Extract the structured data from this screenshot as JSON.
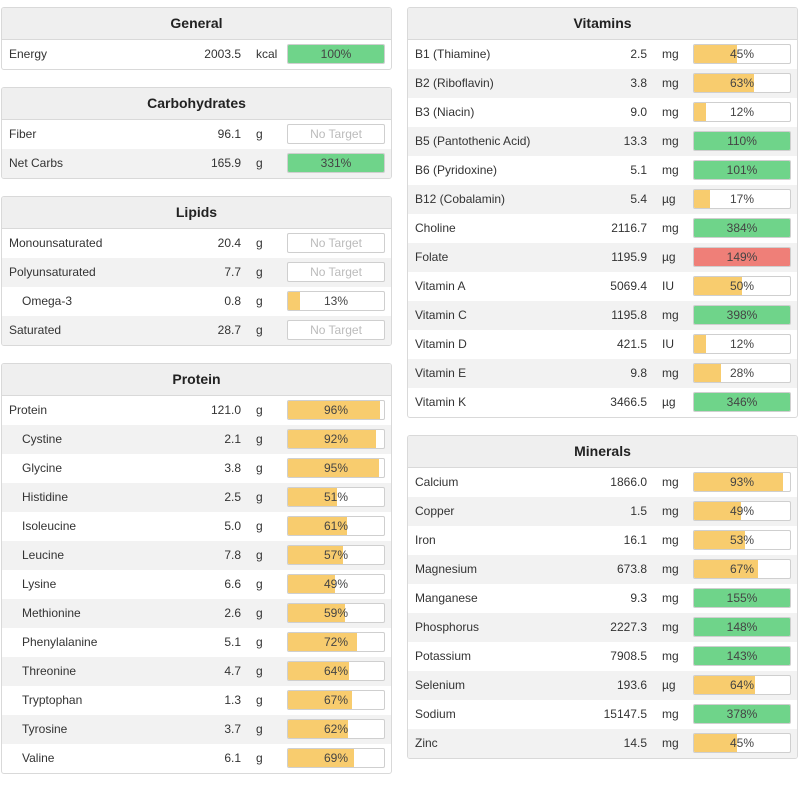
{
  "colors": {
    "green": "#6fd48a",
    "yellow": "#f8cc6e",
    "red": "#ef7f78"
  },
  "left_panels": [
    {
      "title": "General",
      "rows": [
        {
          "name": "Energy",
          "amount": "2003.5",
          "unit": "kcal",
          "pct": 100,
          "label": "100%",
          "status": "green"
        }
      ]
    },
    {
      "title": "Carbohydrates",
      "rows": [
        {
          "name": "Fiber",
          "amount": "96.1",
          "unit": "g",
          "pct": 0,
          "label": "No Target",
          "status": "none"
        },
        {
          "name": "Net Carbs",
          "amount": "165.9",
          "unit": "g",
          "pct": 100,
          "label": "331%",
          "status": "green"
        }
      ]
    },
    {
      "title": "Lipids",
      "rows": [
        {
          "name": "Monounsaturated",
          "amount": "20.4",
          "unit": "g",
          "pct": 0,
          "label": "No Target",
          "status": "none"
        },
        {
          "name": "Polyunsaturated",
          "amount": "7.7",
          "unit": "g",
          "pct": 0,
          "label": "No Target",
          "status": "none"
        },
        {
          "name": "Omega-3",
          "amount": "0.8",
          "unit": "g",
          "pct": 13,
          "label": "13%",
          "status": "yellow",
          "sub": true
        },
        {
          "name": "Saturated",
          "amount": "28.7",
          "unit": "g",
          "pct": 0,
          "label": "No Target",
          "status": "none"
        }
      ]
    },
    {
      "title": "Protein",
      "rows": [
        {
          "name": "Protein",
          "amount": "121.0",
          "unit": "g",
          "pct": 96,
          "label": "96%",
          "status": "yellow"
        },
        {
          "name": "Cystine",
          "amount": "2.1",
          "unit": "g",
          "pct": 92,
          "label": "92%",
          "status": "yellow",
          "sub": true
        },
        {
          "name": "Glycine",
          "amount": "3.8",
          "unit": "g",
          "pct": 95,
          "label": "95%",
          "status": "yellow",
          "sub": true
        },
        {
          "name": "Histidine",
          "amount": "2.5",
          "unit": "g",
          "pct": 51,
          "label": "51%",
          "status": "yellow",
          "sub": true
        },
        {
          "name": "Isoleucine",
          "amount": "5.0",
          "unit": "g",
          "pct": 61,
          "label": "61%",
          "status": "yellow",
          "sub": true
        },
        {
          "name": "Leucine",
          "amount": "7.8",
          "unit": "g",
          "pct": 57,
          "label": "57%",
          "status": "yellow",
          "sub": true
        },
        {
          "name": "Lysine",
          "amount": "6.6",
          "unit": "g",
          "pct": 49,
          "label": "49%",
          "status": "yellow",
          "sub": true
        },
        {
          "name": "Methionine",
          "amount": "2.6",
          "unit": "g",
          "pct": 59,
          "label": "59%",
          "status": "yellow",
          "sub": true
        },
        {
          "name": "Phenylalanine",
          "amount": "5.1",
          "unit": "g",
          "pct": 72,
          "label": "72%",
          "status": "yellow",
          "sub": true
        },
        {
          "name": "Threonine",
          "amount": "4.7",
          "unit": "g",
          "pct": 64,
          "label": "64%",
          "status": "yellow",
          "sub": true
        },
        {
          "name": "Tryptophan",
          "amount": "1.3",
          "unit": "g",
          "pct": 67,
          "label": "67%",
          "status": "yellow",
          "sub": true
        },
        {
          "name": "Tyrosine",
          "amount": "3.7",
          "unit": "g",
          "pct": 62,
          "label": "62%",
          "status": "yellow",
          "sub": true
        },
        {
          "name": "Valine",
          "amount": "6.1",
          "unit": "g",
          "pct": 69,
          "label": "69%",
          "status": "yellow",
          "sub": true
        }
      ]
    }
  ],
  "right_panels": [
    {
      "title": "Vitamins",
      "rows": [
        {
          "name": "B1 (Thiamine)",
          "amount": "2.5",
          "unit": "mg",
          "pct": 45,
          "label": "45%",
          "status": "yellow"
        },
        {
          "name": "B2 (Riboflavin)",
          "amount": "3.8",
          "unit": "mg",
          "pct": 63,
          "label": "63%",
          "status": "yellow"
        },
        {
          "name": "B3 (Niacin)",
          "amount": "9.0",
          "unit": "mg",
          "pct": 12,
          "label": "12%",
          "status": "yellow"
        },
        {
          "name": "B5 (Pantothenic Acid)",
          "amount": "13.3",
          "unit": "mg",
          "pct": 100,
          "label": "110%",
          "status": "green"
        },
        {
          "name": "B6 (Pyridoxine)",
          "amount": "5.1",
          "unit": "mg",
          "pct": 100,
          "label": "101%",
          "status": "green"
        },
        {
          "name": "B12 (Cobalamin)",
          "amount": "5.4",
          "unit": "µg",
          "pct": 17,
          "label": "17%",
          "status": "yellow"
        },
        {
          "name": "Choline",
          "amount": "2116.7",
          "unit": "mg",
          "pct": 100,
          "label": "384%",
          "status": "green"
        },
        {
          "name": "Folate",
          "amount": "1195.9",
          "unit": "µg",
          "pct": 100,
          "label": "149%",
          "status": "red"
        },
        {
          "name": "Vitamin A",
          "amount": "5069.4",
          "unit": "IU",
          "pct": 50,
          "label": "50%",
          "status": "yellow"
        },
        {
          "name": "Vitamin C",
          "amount": "1195.8",
          "unit": "mg",
          "pct": 100,
          "label": "398%",
          "status": "green"
        },
        {
          "name": "Vitamin D",
          "amount": "421.5",
          "unit": "IU",
          "pct": 12,
          "label": "12%",
          "status": "yellow"
        },
        {
          "name": "Vitamin E",
          "amount": "9.8",
          "unit": "mg",
          "pct": 28,
          "label": "28%",
          "status": "yellow"
        },
        {
          "name": "Vitamin K",
          "amount": "3466.5",
          "unit": "µg",
          "pct": 100,
          "label": "346%",
          "status": "green"
        }
      ]
    },
    {
      "title": "Minerals",
      "rows": [
        {
          "name": "Calcium",
          "amount": "1866.0",
          "unit": "mg",
          "pct": 93,
          "label": "93%",
          "status": "yellow"
        },
        {
          "name": "Copper",
          "amount": "1.5",
          "unit": "mg",
          "pct": 49,
          "label": "49%",
          "status": "yellow"
        },
        {
          "name": "Iron",
          "amount": "16.1",
          "unit": "mg",
          "pct": 53,
          "label": "53%",
          "status": "yellow"
        },
        {
          "name": "Magnesium",
          "amount": "673.8",
          "unit": "mg",
          "pct": 67,
          "label": "67%",
          "status": "yellow"
        },
        {
          "name": "Manganese",
          "amount": "9.3",
          "unit": "mg",
          "pct": 100,
          "label": "155%",
          "status": "green"
        },
        {
          "name": "Phosphorus",
          "amount": "2227.3",
          "unit": "mg",
          "pct": 100,
          "label": "148%",
          "status": "green"
        },
        {
          "name": "Potassium",
          "amount": "7908.5",
          "unit": "mg",
          "pct": 100,
          "label": "143%",
          "status": "green"
        },
        {
          "name": "Selenium",
          "amount": "193.6",
          "unit": "µg",
          "pct": 64,
          "label": "64%",
          "status": "yellow"
        },
        {
          "name": "Sodium",
          "amount": "15147.5",
          "unit": "mg",
          "pct": 100,
          "label": "378%",
          "status": "green"
        },
        {
          "name": "Zinc",
          "amount": "14.5",
          "unit": "mg",
          "pct": 45,
          "label": "45%",
          "status": "yellow"
        }
      ]
    }
  ]
}
